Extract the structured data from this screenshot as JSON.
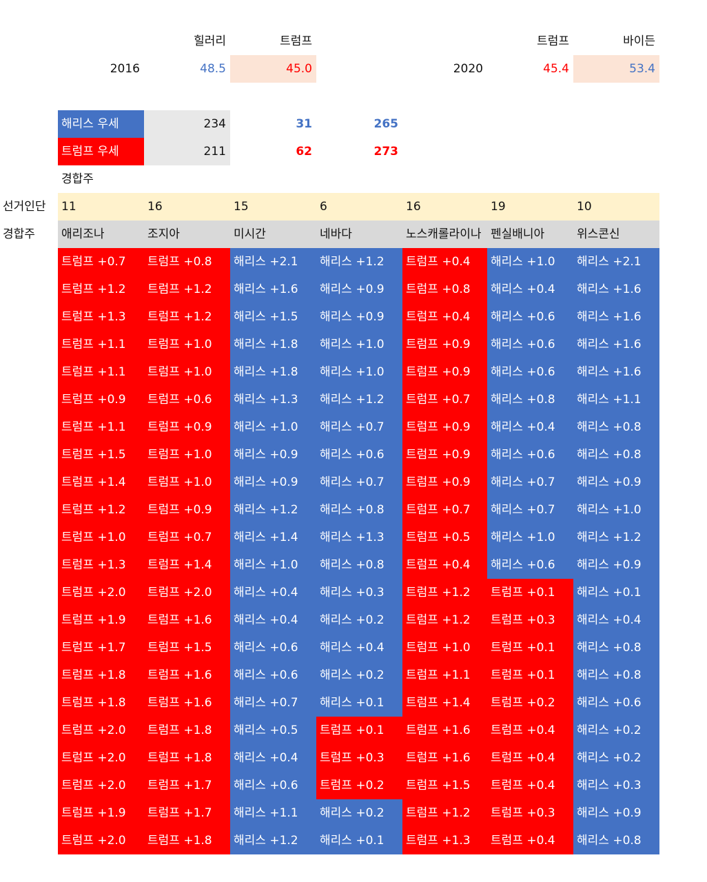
{
  "summary": {
    "header_2016": [
      "힐러리",
      "트럼프"
    ],
    "header_2020": [
      "트럼프",
      "바이든"
    ],
    "year_2016": "2016",
    "year_2020": "2020",
    "v2016_clinton": "48.5",
    "v2016_trump": "45.0",
    "v2020_trump": "45.4",
    "v2020_biden": "53.4"
  },
  "electoral": {
    "harris_label": "해리스 우세",
    "trump_label": "트럼프 우세",
    "harris": [
      "234",
      "31",
      "265"
    ],
    "trump": [
      "211",
      "62",
      "273"
    ]
  },
  "swing_label": "경합주",
  "electors_label": "선거인단",
  "states_label": "경합주",
  "electors": [
    "11",
    "16",
    "15",
    "6",
    "16",
    "19",
    "10"
  ],
  "states": [
    "애리조나",
    "조지아",
    "미시간",
    "네바다",
    "노스캐롤라이나",
    "펜실배니아",
    "위스콘신"
  ],
  "colors": {
    "harris": "#4472c4",
    "trump": "#ff0000"
  },
  "polls": [
    [
      "트럼프 +0.7",
      "트럼프 +0.8",
      "해리스 +2.1",
      "해리스 +1.2",
      "트럼프 +0.4",
      "해리스 +1.0",
      "해리스 +2.1"
    ],
    [
      "트럼프 +1.2",
      "트럼프 +1.2",
      "해리스 +1.6",
      "해리스 +0.9",
      "트럼프 +0.8",
      "해리스 +0.4",
      "해리스 +1.6"
    ],
    [
      "트럼프 +1.3",
      "트럼프 +1.2",
      "해리스 +1.5",
      "해리스 +0.9",
      "트럼프 +0.4",
      "해리스 +0.6",
      "해리스 +1.6"
    ],
    [
      "트럼프 +1.1",
      "트럼프 +1.0",
      "해리스 +1.8",
      "해리스 +1.0",
      "트럼프 +0.9",
      "해리스 +0.6",
      "해리스 +1.6"
    ],
    [
      "트럼프 +1.1",
      "트럼프 +1.0",
      "해리스 +1.8",
      "해리스 +1.0",
      "트럼프 +0.9",
      "해리스 +0.6",
      "해리스 +1.6"
    ],
    [
      "트럼프 +0.9",
      "트럼프 +0.6",
      "해리스 +1.3",
      "해리스 +1.2",
      "트럼프 +0.7",
      "해리스 +0.8",
      "해리스 +1.1"
    ],
    [
      "트럼프 +1.1",
      "트럼프 +0.9",
      "해리스 +1.0",
      "해리스 +0.7",
      "트럼프 +0.9",
      "해리스 +0.4",
      "해리스 +0.8"
    ],
    [
      "트럼프 +1.5",
      "트럼프 +1.0",
      "해리스 +0.9",
      "해리스 +0.6",
      "트럼프 +0.9",
      "해리스 +0.6",
      "해리스 +0.8"
    ],
    [
      "트럼프 +1.4",
      "트럼프 +1.0",
      "해리스 +0.9",
      "해리스 +0.7",
      "트럼프 +0.9",
      "해리스 +0.7",
      "해리스 +0.9"
    ],
    [
      "트럼프 +1.2",
      "트럼프 +0.9",
      "해리스 +1.2",
      "해리스 +0.8",
      "트럼프 +0.7",
      "해리스 +0.7",
      "해리스 +1.0"
    ],
    [
      "트럼프 +1.0",
      "트럼프 +0.7",
      "해리스 +1.4",
      "해리스 +1.3",
      "트럼프 +0.5",
      "해리스 +1.0",
      "해리스 +1.2"
    ],
    [
      "트럼프 +1.3",
      "트럼프 +1.4",
      "해리스 +1.0",
      "해리스 +0.8",
      "트럼프 +0.4",
      "해리스 +0.6",
      "해리스 +0.9"
    ],
    [
      "트럼프 +2.0",
      "트럼프 +2.0",
      "해리스 +0.4",
      "해리스 +0.3",
      "트럼프 +1.2",
      "트럼프 +0.1",
      "해리스 +0.1"
    ],
    [
      "트럼프 +1.9",
      "트럼프 +1.6",
      "해리스 +0.4",
      "해리스 +0.2",
      "트럼프 +1.2",
      "트럼프 +0.3",
      "해리스 +0.4"
    ],
    [
      "트럼프 +1.7",
      "트럼프 +1.5",
      "해리스 +0.6",
      "해리스 +0.4",
      "트럼프 +1.0",
      "트럼프 +0.1",
      "해리스 +0.8"
    ],
    [
      "트럼프 +1.8",
      "트럼프 +1.6",
      "해리스 +0.6",
      "해리스 +0.2",
      "트럼프 +1.1",
      "트럼프 +0.1",
      "해리스 +0.8"
    ],
    [
      "트럼프 +1.8",
      "트럼프 +1.6",
      "해리스 +0.7",
      "해리스 +0.1",
      "트럼프 +1.4",
      "트럼프 +0.2",
      "해리스 +0.6"
    ],
    [
      "트럼프 +2.0",
      "트럼프 +1.8",
      "해리스 +0.5",
      "트럼프 +0.1",
      "트럼프 +1.6",
      "트럼프 +0.4",
      "해리스 +0.2"
    ],
    [
      "트럼프 +2.0",
      "트럼프 +1.8",
      "해리스 +0.4",
      "트럼프 +0.3",
      "트럼프 +1.6",
      "트럼프 +0.4",
      "해리스 +0.2"
    ],
    [
      "트럼프 +2.0",
      "트럼프 +1.7",
      "해리스 +0.6",
      "트럼프 +0.2",
      "트럼프 +1.5",
      "트럼프 +0.4",
      "해리스 +0.3"
    ],
    [
      "트럼프 +1.9",
      "트럼프 +1.7",
      "해리스 +1.1",
      "해리스 +0.2",
      "트럼프 +1.2",
      "트럼프 +0.3",
      "해리스 +0.9"
    ],
    [
      "트럼프 +2.0",
      "트럼프 +1.8",
      "해리스 +1.2",
      "해리스 +0.1",
      "트럼프 +1.3",
      "트럼프 +0.4",
      "해리스 +0.8"
    ]
  ]
}
